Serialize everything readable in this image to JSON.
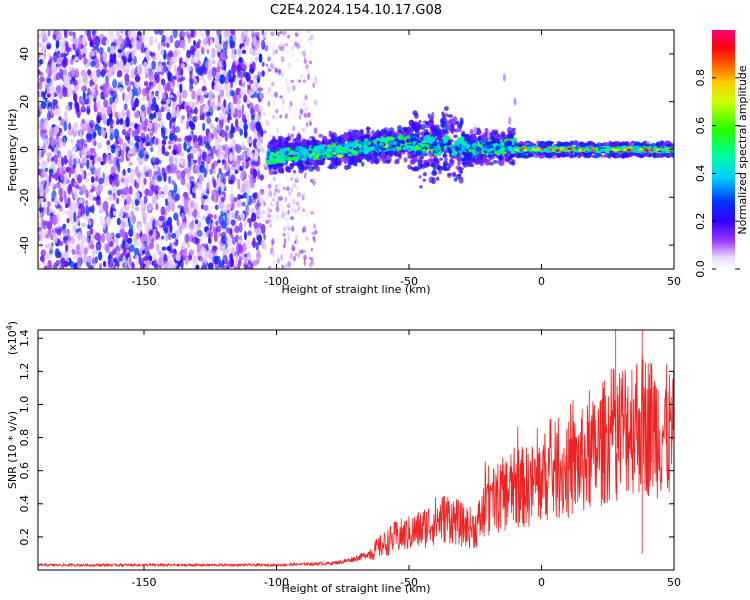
{
  "title": "C2E4.2024.154.10.17.G08",
  "chart_data": [
    {
      "type": "heatmap",
      "xlabel": "Height of straight line (km)",
      "ylabel": "Frequency (Hz)",
      "xlim": [
        -190,
        50
      ],
      "ylim": [
        -50,
        50
      ],
      "xticks": [
        -150,
        -100,
        -50,
        0,
        50
      ],
      "yticks": [
        -40,
        -20,
        0,
        20,
        40
      ],
      "grid": false,
      "colorbar": {
        "label": "Normalized spectral amplitude",
        "range": [
          0,
          1
        ],
        "ticks": [
          "0.0",
          "0.2",
          "0.4",
          "0.6",
          "0.8"
        ],
        "colors": [
          "#ffffff",
          "#d9b3ff",
          "#7a00ff",
          "#0000ff",
          "#00c8ff",
          "#00ff40",
          "#ffff00",
          "#ff8000",
          "#ff0000",
          "#ff0080"
        ]
      },
      "regions": [
        {
          "x": [
            -190,
            -105
          ],
          "y": [
            -50,
            50
          ],
          "amplitude": [
            0.05,
            0.3
          ]
        },
        {
          "x": [
            -105,
            -85
          ],
          "y": [
            -50,
            50
          ],
          "amplitude": [
            0.0,
            0.15
          ]
        },
        {
          "x": [
            -103,
            -10
          ],
          "y_center": [
            -2,
            4
          ],
          "amplitude": [
            0.2,
            0.75
          ]
        },
        {
          "x": [
            -10,
            50
          ],
          "y_center": [
            0,
            0
          ],
          "amplitude": [
            0.3,
            0.95
          ]
        }
      ]
    },
    {
      "type": "line",
      "xlabel": "Height of straight line (km)",
      "ylabel": "SNR (10 * v/v)",
      "yscale_label": "(x10",
      "yscale_exp": "4",
      "xlim": [
        -190,
        50
      ],
      "ylim": [
        0,
        1.45
      ],
      "xticks": [
        -150,
        -100,
        -50,
        0,
        50
      ],
      "yticks": [
        "0.2",
        "0.4",
        "0.6",
        "0.8",
        "1.0",
        "1.2",
        "1.4"
      ],
      "series": [
        {
          "color": "#ee2222",
          "x": [
            -190,
            -170,
            -150,
            -130,
            -110,
            -100,
            -90,
            -80,
            -75,
            -70,
            -65,
            -60,
            -55,
            -50,
            -45,
            -40,
            -35,
            -30,
            -25,
            -20,
            -15,
            -10,
            -5,
            0,
            5,
            10,
            15,
            20,
            25,
            30,
            35,
            40,
            45,
            50
          ],
          "y": [
            0.03,
            0.03,
            0.03,
            0.03,
            0.03,
            0.03,
            0.035,
            0.04,
            0.05,
            0.07,
            0.1,
            0.15,
            0.2,
            0.22,
            0.25,
            0.3,
            0.32,
            0.27,
            0.25,
            0.4,
            0.45,
            0.5,
            0.5,
            0.55,
            0.6,
            0.6,
            0.65,
            0.7,
            0.8,
            0.85,
            0.9,
            0.88,
            0.85,
            0.8
          ]
        }
      ]
    }
  ]
}
